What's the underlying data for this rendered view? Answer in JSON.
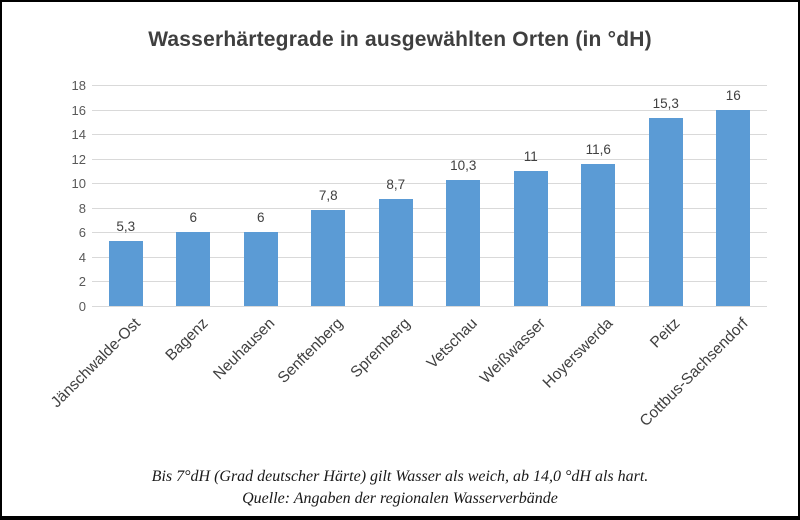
{
  "chart_data": {
    "type": "bar",
    "title": "Wasserhärtegrade in ausgewählten Orten (in °dH)",
    "categories": [
      "Jänschwalde-Ost",
      "Bagenz",
      "Neuhausen",
      "Senftenberg",
      "Spremberg",
      "Vetschau",
      "Weißwasser",
      "Hoyerswerda",
      "Peitz",
      "Cottbus-Sachsendorf"
    ],
    "values": [
      5.3,
      6,
      6,
      7.8,
      8.7,
      10.3,
      11,
      11.6,
      15.3,
      16
    ],
    "value_labels": [
      "5,3",
      "6",
      "6",
      "7,8",
      "8,7",
      "10,3",
      "11",
      "11,6",
      "15,3",
      "16"
    ],
    "xlabel": "",
    "ylabel": "",
    "ylim": [
      0,
      18
    ],
    "ytick_step": 2,
    "grid": true,
    "legend": false,
    "x_label_rotation_deg": 45,
    "bar_color": "#5b9bd5",
    "gridline_color": "#d9d9d9",
    "tick_color": "#595959",
    "label_color": "#404040"
  },
  "footer": {
    "line1": "Bis 7°dH (Grad deutscher Härte) gilt Wasser als weich, ab 14,0 °dH als hart.",
    "line2": "Quelle: Angaben der regionalen Wasserverbände"
  }
}
